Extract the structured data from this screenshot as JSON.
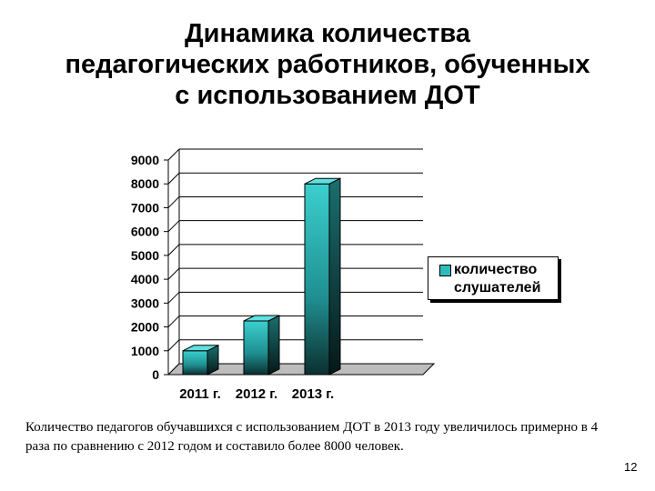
{
  "slide": {
    "title_lines": [
      "Динамика количества",
      "педагогических работников, обученных",
      "с использованием ДОТ"
    ],
    "caption": "Количество педагогов обучавшихся с использованием ДОТ в 2013 году увеличилось примерно в 4 раза по сравнению с 2012 годом и составило более 8000 человек.",
    "page_number": "12"
  },
  "chart_data": {
    "type": "bar",
    "categories": [
      "2011 г.",
      "2012 г.",
      "2013 г."
    ],
    "series": [
      {
        "name": "количество слушателей",
        "values": [
          1000,
          2250,
          8000
        ]
      }
    ],
    "ylim": [
      0,
      9000
    ],
    "y_ticks": [
      "0",
      "1000",
      "2000",
      "3000",
      "4000",
      "5000",
      "6000",
      "7000",
      "8000",
      "9000"
    ],
    "grid": true,
    "legend_position": "right",
    "bar_color": "#2cbcbc"
  }
}
